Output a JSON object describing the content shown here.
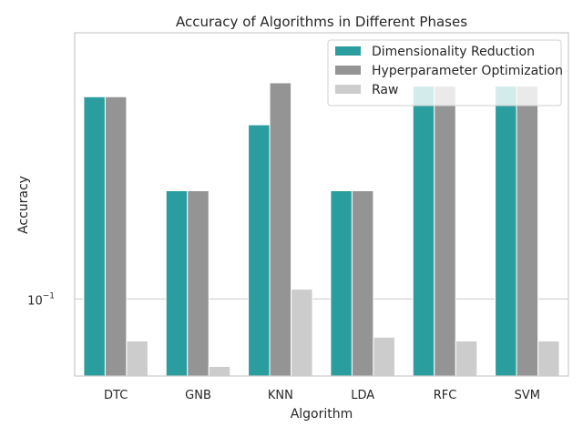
{
  "chart_data": {
    "type": "bar",
    "title": "Accuracy of Algorithms in Different Phases",
    "xlabel": "Algorithm",
    "ylabel": "Accuracy",
    "yscale": "log",
    "ylim": [
      0.059,
      0.62
    ],
    "ytick_labels": [
      {
        "value": 0.1,
        "base": "10",
        "exp": "−1"
      }
    ],
    "categories": [
      "DTC",
      "GNB",
      "KNN",
      "LDA",
      "RFC",
      "SVM"
    ],
    "series": [
      {
        "name": "Dimensionality Reduction",
        "color": "#2a9d9e",
        "values": [
          0.4,
          0.21,
          0.33,
          0.21,
          0.43,
          0.43
        ]
      },
      {
        "name": "Hyperparameter Optimization",
        "color": "#949494",
        "values": [
          0.4,
          0.21,
          0.44,
          0.21,
          0.43,
          0.43
        ]
      },
      {
        "name": "Raw",
        "color": "#cccccc",
        "values": [
          0.075,
          0.063,
          0.107,
          0.077,
          0.075,
          0.075
        ]
      }
    ],
    "grid": true,
    "legend_position": "top-right"
  }
}
